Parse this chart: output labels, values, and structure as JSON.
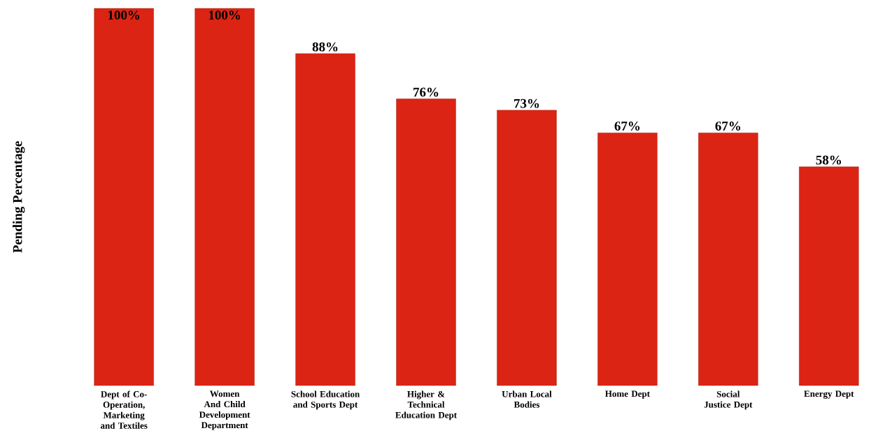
{
  "chart_data": {
    "type": "bar",
    "ylabel": "Pending Percentage",
    "categories": [
      "Dept of Co-Operation, Marketing and Textiles",
      "Women And Child Development Department",
      "School Education and Sports Dept",
      "Higher & Technical Education Dept",
      "Urban Local Bodies",
      "Home Dept",
      "Social Justice Dept",
      "Energy Dept"
    ],
    "values": [
      100,
      100,
      88,
      76,
      73,
      67,
      67,
      58
    ],
    "value_labels": [
      "100%",
      "100%",
      "88%",
      "76%",
      "73%",
      "67%",
      "67%",
      "58%"
    ],
    "color": "#dc2414"
  }
}
